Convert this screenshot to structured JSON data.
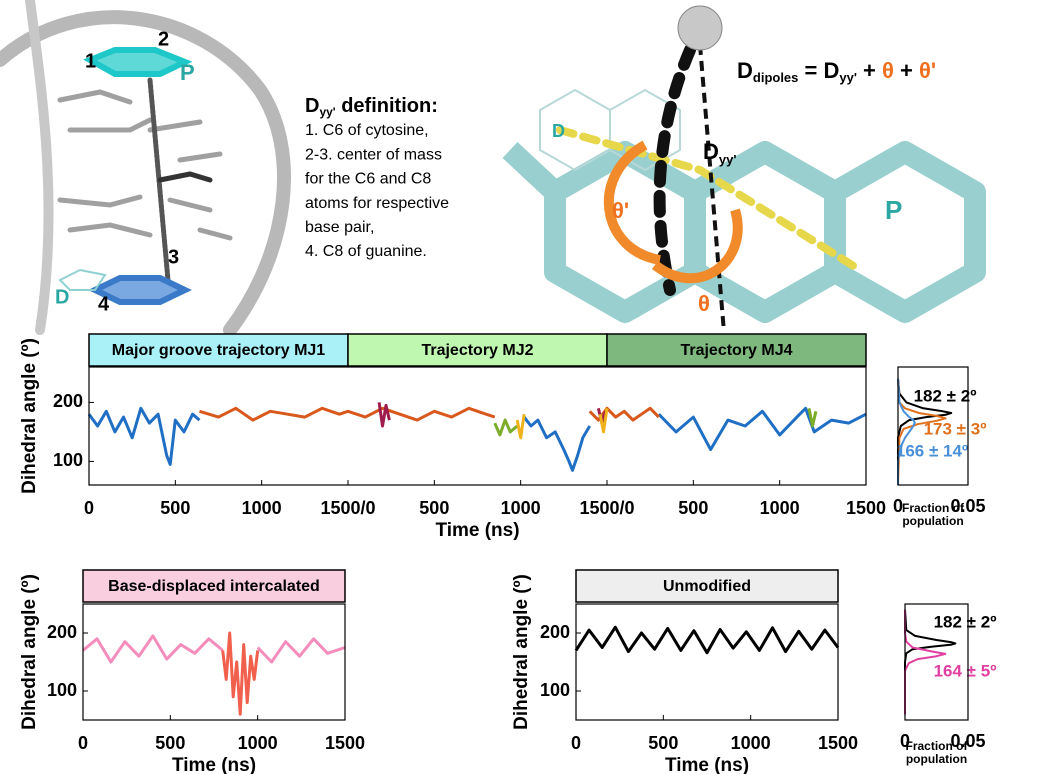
{
  "figure": {
    "left_labels": [
      "1",
      "2",
      "P",
      "3",
      "4",
      "D"
    ],
    "definition": {
      "head": "D",
      "sub": "yy'",
      "tail": " definition:",
      "lines": [
        "1. C6 of cytosine,",
        "2-3. center of mass",
        "for the C6 and C8",
        "atoms for respective",
        "base pair,",
        "4. C8 of guanine."
      ]
    },
    "equation": [
      "D",
      "dipoles",
      " = D",
      "yy'",
      " + ",
      "θ",
      " + ",
      "θ'"
    ],
    "right_labels": {
      "donor": "D",
      "dyy": "D",
      "dyy_sub": "yy'",
      "theta_prime": "θ'",
      "theta": "θ",
      "p": "P"
    }
  },
  "chart_data": [
    {
      "type": "line",
      "ylabel": "Dihedral angle (º)",
      "xlabel": "Time (ns)",
      "banners": [
        {
          "text": "Major groove trajectory MJ1",
          "color": "#aaf0f7"
        },
        {
          "text": "Trajectory MJ2",
          "color": "#bff7b0"
        },
        {
          "text": "Trajectory MJ4",
          "color": "#7fb87f"
        }
      ],
      "xlim": [
        0,
        4500
      ],
      "ylim": [
        60,
        260
      ],
      "xticks": [
        0,
        500,
        1000,
        {
          "value": 1500,
          "label": "1500/0"
        },
        {
          "value": 2000,
          "label": "500"
        },
        {
          "value": 2500,
          "label": "1000"
        },
        {
          "value": 3000,
          "label": "1500/0"
        },
        {
          "value": 3500,
          "label": "500"
        },
        {
          "value": 4000,
          "label": "1000"
        },
        {
          "value": 4500,
          "label": "1500"
        }
      ],
      "yticks": [
        100,
        200
      ],
      "series": [
        {
          "color": "#1f6fc5",
          "x": [
            0,
            50,
            100,
            150,
            200,
            250,
            300,
            350,
            400,
            450,
            470,
            500,
            550,
            600,
            640,
            645,
            2520,
            2560,
            2600,
            2650,
            2700,
            2750,
            2780,
            2800,
            2830,
            2860,
            2900,
            2905,
            3300,
            3400,
            3500,
            3600,
            3700,
            3800,
            3900,
            4000,
            4100,
            4150,
            4200,
            4300,
            4400,
            4500
          ],
          "values": [
            180,
            160,
            185,
            150,
            175,
            140,
            190,
            165,
            180,
            110,
            95,
            170,
            150,
            180,
            170,
            null,
            175,
            160,
            170,
            140,
            150,
            120,
            100,
            85,
            110,
            140,
            160,
            null,
            180,
            150,
            175,
            120,
            170,
            160,
            185,
            145,
            175,
            190,
            150,
            170,
            165,
            180
          ]
        },
        {
          "color": "#d9581c",
          "x": [
            640,
            750,
            850,
            950,
            1050,
            1150,
            1250,
            1350,
            1450,
            1500,
            1600,
            1700,
            1800,
            1900,
            2000,
            2100,
            2200,
            2300,
            2350,
            2355,
            2900,
            2950,
            3000,
            3050,
            3100,
            3150,
            3200,
            3250,
            3300
          ],
          "values": [
            185,
            175,
            190,
            170,
            185,
            180,
            175,
            190,
            180,
            185,
            175,
            190,
            180,
            170,
            185,
            175,
            190,
            180,
            175,
            null,
            185,
            170,
            190,
            175,
            185,
            170,
            180,
            190,
            175
          ]
        },
        {
          "color": "#7cad2a",
          "x": [
            2350,
            2380,
            2410,
            2440,
            2480,
            2485,
            4170,
            4190,
            4210
          ],
          "values": [
            165,
            145,
            170,
            150,
            160,
            null,
            190,
            160,
            185
          ]
        },
        {
          "color": "#a01c4a",
          "x": [
            1680,
            1700,
            1720,
            1740,
            1745,
            2950,
            2970,
            2990
          ],
          "values": [
            200,
            160,
            195,
            170,
            null,
            190,
            165,
            185
          ]
        },
        {
          "color": "#f0b21a",
          "x": [
            2480,
            2500,
            2520,
            2525,
            2960,
            2980,
            3000
          ],
          "values": [
            170,
            140,
            180,
            null,
            180,
            150,
            190
          ]
        }
      ]
    },
    {
      "type": "line",
      "xlabel": "Fraction of population",
      "xlim": [
        0,
        0.05
      ],
      "ylim": [
        60,
        260
      ],
      "xticks": [
        0,
        0.05
      ],
      "series": [
        {
          "name": "182 ± 2º",
          "color": "#000000",
          "x": [
            0,
            0.001,
            0.006,
            0.018,
            0.032,
            0.038,
            0.034,
            0.02,
            0.008,
            0.002,
            0,
            0,
            0
          ],
          "values": [
            240,
            215,
            200,
            190,
            185,
            182,
            179,
            175,
            170,
            160,
            140,
            100,
            60
          ]
        },
        {
          "name": "173 ± 3º",
          "color": "#e0701c",
          "x": [
            0,
            0.001,
            0.005,
            0.015,
            0.028,
            0.034,
            0.028,
            0.014,
            0.004,
            0.001,
            0
          ],
          "values": [
            240,
            200,
            190,
            182,
            177,
            173,
            169,
            163,
            155,
            140,
            60
          ]
        },
        {
          "name": "166 ± 14º",
          "color": "#4a90d9",
          "x": [
            0,
            0.001,
            0.004,
            0.008,
            0.011,
            0.012,
            0.011,
            0.008,
            0.005,
            0.003,
            0.001,
            0,
            0
          ],
          "values": [
            240,
            200,
            185,
            175,
            170,
            166,
            160,
            150,
            140,
            130,
            115,
            100,
            60
          ]
        }
      ]
    },
    {
      "type": "line",
      "ylabel": "Dihedral angle (º)",
      "xlabel": "Time (ns)",
      "banners": [
        {
          "text": "Base-displaced intercalated",
          "color": "#f9cfe0"
        }
      ],
      "xlim": [
        0,
        1500
      ],
      "ylim": [
        50,
        250
      ],
      "xticks": [
        0,
        500,
        1000,
        1500
      ],
      "yticks": [
        100,
        200
      ],
      "series": [
        {
          "color": "#f48cbc",
          "x": [
            0,
            80,
            160,
            240,
            320,
            400,
            480,
            560,
            640,
            720,
            800,
            805,
            1000,
            1080,
            1160,
            1240,
            1320,
            1400,
            1500
          ],
          "values": [
            170,
            190,
            150,
            185,
            160,
            195,
            155,
            180,
            165,
            190,
            170,
            null,
            175,
            150,
            185,
            160,
            190,
            165,
            175
          ]
        },
        {
          "color": "#f0604c",
          "x": [
            800,
            820,
            840,
            860,
            880,
            900,
            920,
            940,
            960,
            980,
            1000
          ],
          "values": [
            170,
            120,
            200,
            90,
            150,
            60,
            180,
            80,
            160,
            120,
            170
          ]
        }
      ]
    },
    {
      "type": "line",
      "ylabel": "Dihedral angle (º)",
      "xlabel": "Time (ns)",
      "banners": [
        {
          "text": "Unmodified",
          "color": "#eeeeee"
        }
      ],
      "xlim": [
        0,
        1500
      ],
      "ylim": [
        50,
        250
      ],
      "xticks": [
        0,
        500,
        1000,
        1500
      ],
      "yticks": [
        100,
        200
      ],
      "series": [
        {
          "color": "#000000",
          "x": [
            0,
            75,
            150,
            225,
            300,
            375,
            450,
            525,
            600,
            675,
            750,
            825,
            900,
            975,
            1050,
            1125,
            1200,
            1275,
            1350,
            1425,
            1500
          ],
          "values": [
            170,
            205,
            175,
            210,
            168,
            200,
            172,
            208,
            170,
            204,
            166,
            206,
            174,
            202,
            170,
            209,
            168,
            203,
            172,
            205,
            175
          ]
        }
      ]
    },
    {
      "type": "line",
      "xlabel": "Fraction of population",
      "xlim": [
        0,
        0.05
      ],
      "ylim": [
        50,
        250
      ],
      "xticks": [
        0,
        0.05
      ],
      "series": [
        {
          "name": "182 ± 2º",
          "color": "#000000",
          "x": [
            0,
            0.001,
            0.008,
            0.025,
            0.037,
            0.04,
            0.037,
            0.02,
            0.006,
            0.001,
            0,
            0
          ],
          "values": [
            240,
            205,
            195,
            188,
            184,
            182,
            180,
            176,
            172,
            165,
            150,
            60
          ]
        },
        {
          "name": "164 ± 5º",
          "color": "#e040a0",
          "x": [
            0,
            0,
            0.001,
            0.006,
            0.022,
            0.032,
            0.025,
            0.01,
            0.003,
            0,
            0
          ],
          "values": [
            240,
            200,
            185,
            175,
            168,
            164,
            160,
            155,
            148,
            135,
            60
          ]
        }
      ]
    }
  ]
}
